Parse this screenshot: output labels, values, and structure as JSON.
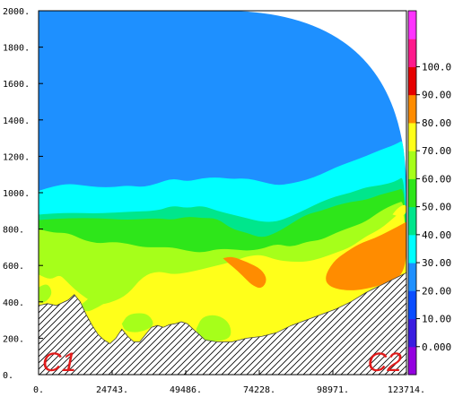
{
  "chart_data": {
    "type": "contour",
    "x_ticks": [
      "0.",
      "24743.",
      "49486.",
      "74228.",
      "98971.",
      "123714."
    ],
    "y_ticks": [
      "0.",
      "200.",
      "400.",
      "600.",
      "800.",
      "1000.",
      "1200.",
      "1400.",
      "1600.",
      "1800.",
      "2000."
    ],
    "xlim": [
      0,
      123714
    ],
    "ylim": [
      0,
      2000
    ],
    "colorbar": {
      "ticks": [
        "0.000",
        "10.00",
        "20.00",
        "30.00",
        "40.00",
        "50.00",
        "60.00",
        "70.00",
        "80.00",
        "90.00",
        "100.0"
      ],
      "range": [
        -10,
        110
      ],
      "levels": [
        {
          "from": -10,
          "to": 0,
          "color": "#9400e0"
        },
        {
          "from": 0,
          "to": 10,
          "color": "#3a1de0"
        },
        {
          "from": 10,
          "to": 20,
          "color": "#0a4dff"
        },
        {
          "from": 20,
          "to": 30,
          "color": "#1e90ff"
        },
        {
          "from": 30,
          "to": 40,
          "color": "#00ffff"
        },
        {
          "from": 40,
          "to": 50,
          "color": "#00e68c"
        },
        {
          "from": 50,
          "to": 60,
          "color": "#2ee61a"
        },
        {
          "from": 60,
          "to": 70,
          "color": "#a6ff1a"
        },
        {
          "from": 70,
          "to": 80,
          "color": "#ffff1a"
        },
        {
          "from": 80,
          "to": 90,
          "color": "#ff8c00"
        },
        {
          "from": 90,
          "to": 100,
          "color": "#e60000"
        },
        {
          "from": 100,
          "to": 110,
          "color": "#ff1a8c"
        },
        {
          "from": 110,
          "to": 120,
          "color": "#ff33ff"
        }
      ]
    },
    "regions": [
      {
        "level": "20-30",
        "color": "#1e90ff",
        "points": [
          [
            0,
            2000
          ],
          [
            123714,
            2000
          ],
          [
            123714,
            0
          ],
          [
            0,
            0
          ]
        ]
      },
      {
        "level": "30-40",
        "color": "#00ffff",
        "points": [
          [
            0,
            1010
          ],
          [
            5000,
            1035
          ],
          [
            10000,
            1050
          ],
          [
            15000,
            1040
          ],
          [
            20000,
            1030
          ],
          [
            25000,
            1030
          ],
          [
            30000,
            1040
          ],
          [
            35000,
            1030
          ],
          [
            40000,
            1050
          ],
          [
            45000,
            1080
          ],
          [
            50000,
            1060
          ],
          [
            55000,
            1080
          ],
          [
            60000,
            1085
          ],
          [
            65000,
            1075
          ],
          [
            70000,
            1080
          ],
          [
            75000,
            1060
          ],
          [
            80000,
            1040
          ],
          [
            85000,
            1050
          ],
          [
            90000,
            1070
          ],
          [
            95000,
            1100
          ],
          [
            100000,
            1140
          ],
          [
            105000,
            1170
          ],
          [
            110000,
            1200
          ],
          [
            115000,
            1235
          ],
          [
            120000,
            1265
          ],
          [
            123714,
            1300
          ],
          [
            123714,
            0
          ],
          [
            0,
            0
          ]
        ]
      },
      {
        "level": "40-50",
        "color": "#00e68c",
        "points": [
          [
            0,
            880
          ],
          [
            10000,
            890
          ],
          [
            20000,
            885
          ],
          [
            30000,
            895
          ],
          [
            40000,
            900
          ],
          [
            45000,
            930
          ],
          [
            50000,
            915
          ],
          [
            55000,
            930
          ],
          [
            60000,
            900
          ],
          [
            65000,
            880
          ],
          [
            70000,
            860
          ],
          [
            75000,
            840
          ],
          [
            80000,
            840
          ],
          [
            85000,
            870
          ],
          [
            90000,
            910
          ],
          [
            95000,
            950
          ],
          [
            100000,
            980
          ],
          [
            105000,
            1000
          ],
          [
            110000,
            1030
          ],
          [
            115000,
            1040
          ],
          [
            120000,
            1060
          ],
          [
            123714,
            1100
          ],
          [
            123714,
            0
          ],
          [
            0,
            0
          ]
        ]
      },
      {
        "level": "50-60",
        "color": "#2ee61a",
        "points": [
          [
            0,
            850
          ],
          [
            10000,
            860
          ],
          [
            20000,
            860
          ],
          [
            30000,
            850
          ],
          [
            40000,
            860
          ],
          [
            45000,
            850
          ],
          [
            50000,
            870
          ],
          [
            55000,
            860
          ],
          [
            60000,
            860
          ],
          [
            65000,
            800
          ],
          [
            70000,
            780
          ],
          [
            75000,
            750
          ],
          [
            80000,
            780
          ],
          [
            85000,
            830
          ],
          [
            90000,
            880
          ],
          [
            95000,
            900
          ],
          [
            100000,
            930
          ],
          [
            105000,
            950
          ],
          [
            110000,
            960
          ],
          [
            115000,
            990
          ],
          [
            120000,
            1010
          ],
          [
            123714,
            1030
          ],
          [
            123714,
            0
          ],
          [
            0,
            0
          ]
        ]
      },
      {
        "level": "60-70",
        "color": "#a6ff1a",
        "points": [
          [
            0,
            800
          ],
          [
            5000,
            780
          ],
          [
            10000,
            780
          ],
          [
            15000,
            740
          ],
          [
            20000,
            720
          ],
          [
            25000,
            730
          ],
          [
            30000,
            720
          ],
          [
            35000,
            700
          ],
          [
            40000,
            700
          ],
          [
            45000,
            700
          ],
          [
            50000,
            680
          ],
          [
            55000,
            670
          ],
          [
            60000,
            690
          ],
          [
            65000,
            690
          ],
          [
            70000,
            680
          ],
          [
            75000,
            690
          ],
          [
            80000,
            720
          ],
          [
            85000,
            700
          ],
          [
            90000,
            730
          ],
          [
            95000,
            740
          ],
          [
            100000,
            780
          ],
          [
            105000,
            810
          ],
          [
            110000,
            840
          ],
          [
            115000,
            900
          ],
          [
            120000,
            940
          ],
          [
            123714,
            960
          ],
          [
            123714,
            0
          ],
          [
            0,
            0
          ]
        ]
      },
      {
        "level": "70-80",
        "color": "#ffff1a",
        "points": [
          [
            0,
            550
          ],
          [
            4000,
            520
          ],
          [
            7000,
            550
          ],
          [
            9000,
            520
          ],
          [
            12000,
            470
          ],
          [
            16000,
            420
          ],
          [
            20000,
            380
          ],
          [
            25000,
            400
          ],
          [
            30000,
            440
          ],
          [
            35000,
            540
          ],
          [
            40000,
            570
          ],
          [
            45000,
            550
          ],
          [
            50000,
            560
          ],
          [
            55000,
            580
          ],
          [
            60000,
            600
          ],
          [
            65000,
            620
          ],
          [
            70000,
            650
          ],
          [
            75000,
            660
          ],
          [
            80000,
            630
          ],
          [
            85000,
            620
          ],
          [
            90000,
            620
          ],
          [
            95000,
            640
          ],
          [
            100000,
            670
          ],
          [
            105000,
            700
          ],
          [
            110000,
            760
          ],
          [
            115000,
            800
          ],
          [
            120000,
            870
          ],
          [
            123714,
            920
          ],
          [
            123714,
            0
          ],
          [
            0,
            0
          ]
        ]
      },
      {
        "level": "80-90",
        "color": "#ff8c00",
        "points": [
          [
            123714,
            840
          ],
          [
            118000,
            790
          ],
          [
            113000,
            750
          ],
          [
            108000,
            720
          ],
          [
            103000,
            670
          ],
          [
            99000,
            620
          ],
          [
            96000,
            530
          ],
          [
            98000,
            480
          ],
          [
            104000,
            460
          ],
          [
            110000,
            470
          ],
          [
            117000,
            500
          ],
          [
            123714,
            560
          ],
          [
            123714,
            840
          ]
        ]
      },
      {
        "level": "80-90",
        "color": "#ff8c00",
        "points": [
          [
            62000,
            640
          ],
          [
            64000,
            610
          ],
          [
            67000,
            570
          ],
          [
            70000,
            520
          ],
          [
            72000,
            490
          ],
          [
            75000,
            470
          ],
          [
            77000,
            520
          ],
          [
            75000,
            580
          ],
          [
            70000,
            620
          ],
          [
            65000,
            650
          ],
          [
            62000,
            640
          ]
        ]
      },
      {
        "level": "70-80",
        "color": "#ffff1a",
        "points": [
          [
            119000,
            880
          ],
          [
            121000,
            920
          ],
          [
            123714,
            940
          ],
          [
            123714,
            880
          ],
          [
            121000,
            870
          ],
          [
            119000,
            880
          ]
        ]
      },
      {
        "level": "60-70",
        "color": "#a6ff1a",
        "points": [
          [
            0,
            480
          ],
          [
            2500,
            500
          ],
          [
            4000,
            480
          ],
          [
            4500,
            440
          ],
          [
            2500,
            400
          ],
          [
            0,
            390
          ],
          [
            0,
            480
          ]
        ]
      },
      {
        "level": "60-70",
        "color": "#a6ff1a",
        "points": [
          [
            14000,
            380
          ],
          [
            17000,
            420
          ],
          [
            20000,
            470
          ],
          [
            23000,
            490
          ],
          [
            26000,
            470
          ],
          [
            24000,
            410
          ],
          [
            20000,
            370
          ],
          [
            16000,
            340
          ],
          [
            14000,
            380
          ]
        ]
      },
      {
        "level": "60-70",
        "color": "#a6ff1a",
        "points": [
          [
            28000,
            280
          ],
          [
            30000,
            330
          ],
          [
            34000,
            340
          ],
          [
            37000,
            330
          ],
          [
            39000,
            280
          ],
          [
            37000,
            250
          ],
          [
            33000,
            230
          ],
          [
            29000,
            240
          ],
          [
            28000,
            280
          ]
        ]
      },
      {
        "level": "60-70",
        "color": "#a6ff1a",
        "points": [
          [
            53000,
            250
          ],
          [
            55000,
            320
          ],
          [
            60000,
            330
          ],
          [
            64000,
            290
          ],
          [
            65000,
            220
          ],
          [
            63000,
            190
          ],
          [
            58000,
            180
          ],
          [
            54000,
            200
          ],
          [
            53000,
            250
          ]
        ]
      }
    ],
    "terrain": [
      [
        0,
        380
      ],
      [
        3000,
        390
      ],
      [
        6000,
        380
      ],
      [
        10000,
        410
      ],
      [
        12000,
        440
      ],
      [
        14000,
        400
      ],
      [
        16000,
        330
      ],
      [
        18000,
        270
      ],
      [
        20000,
        220
      ],
      [
        22000,
        190
      ],
      [
        24000,
        170
      ],
      [
        26000,
        200
      ],
      [
        28000,
        250
      ],
      [
        30000,
        210
      ],
      [
        32000,
        180
      ],
      [
        34000,
        180
      ],
      [
        36000,
        220
      ],
      [
        38000,
        260
      ],
      [
        40000,
        270
      ],
      [
        42000,
        260
      ],
      [
        44000,
        275
      ],
      [
        46000,
        280
      ],
      [
        48000,
        290
      ],
      [
        50000,
        280
      ],
      [
        52000,
        250
      ],
      [
        54000,
        220
      ],
      [
        56000,
        190
      ],
      [
        60000,
        180
      ],
      [
        65000,
        180
      ],
      [
        70000,
        200
      ],
      [
        75000,
        210
      ],
      [
        80000,
        230
      ],
      [
        85000,
        270
      ],
      [
        90000,
        300
      ],
      [
        95000,
        330
      ],
      [
        100000,
        360
      ],
      [
        105000,
        400
      ],
      [
        110000,
        450
      ],
      [
        115000,
        490
      ],
      [
        120000,
        530
      ],
      [
        123714,
        560
      ]
    ],
    "annotations": [
      {
        "text": "C1",
        "anchor": "bottom-left"
      },
      {
        "text": "C2",
        "anchor": "bottom-right"
      }
    ]
  }
}
